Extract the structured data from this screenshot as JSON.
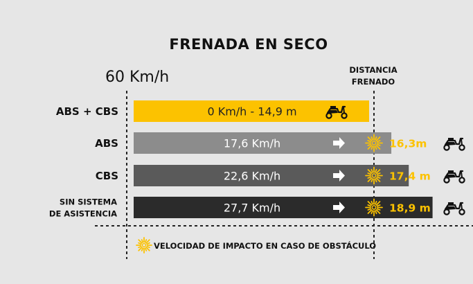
{
  "chart_data": {
    "type": "bar",
    "title": "FRENADA EN SECO",
    "initial_speed_label": "60 Km/h",
    "distance_column_header": [
      "DISTANCIA",
      "FRENADO"
    ],
    "categories": [
      "ABS + CBS",
      "ABS",
      "CBS",
      "SIN SISTEMA DE ASISTENCIA"
    ],
    "category_lines": [
      [
        "ABS + CBS"
      ],
      [
        "ABS"
      ],
      [
        "CBS"
      ],
      [
        "SIN SISTEMA",
        "DE ASISTENCIA"
      ]
    ],
    "series": [
      {
        "values_m": [
          14.9,
          16.3,
          17.4,
          18.9
        ],
        "impact_speed_kmh": [
          0,
          17.6,
          22.6,
          27.7
        ],
        "bar_labels": [
          "0 Km/h - 14,9 m",
          "17,6 Km/h",
          "22,6 Km/h",
          "27,7 Km/h"
        ],
        "distance_labels": [
          "",
          "16,3m",
          "17,4 m",
          "18,9 m"
        ],
        "bar_colors": [
          "#fcc200",
          "#8c8c8c",
          "#5a5a5a",
          "#2b2b2b"
        ]
      }
    ],
    "obstacle_distance_m": 14.9,
    "legend": "VELOCIDAD DE IMPACTO EN CASO DE OBSTÁCULO",
    "colors": {
      "accent": "#fcc200",
      "text": "#111111",
      "background": "#e6e6e6"
    }
  },
  "icons": {
    "scooter": "scooter-icon",
    "arrow": "arrow-right-icon",
    "impact": "impact-burst-icon"
  }
}
